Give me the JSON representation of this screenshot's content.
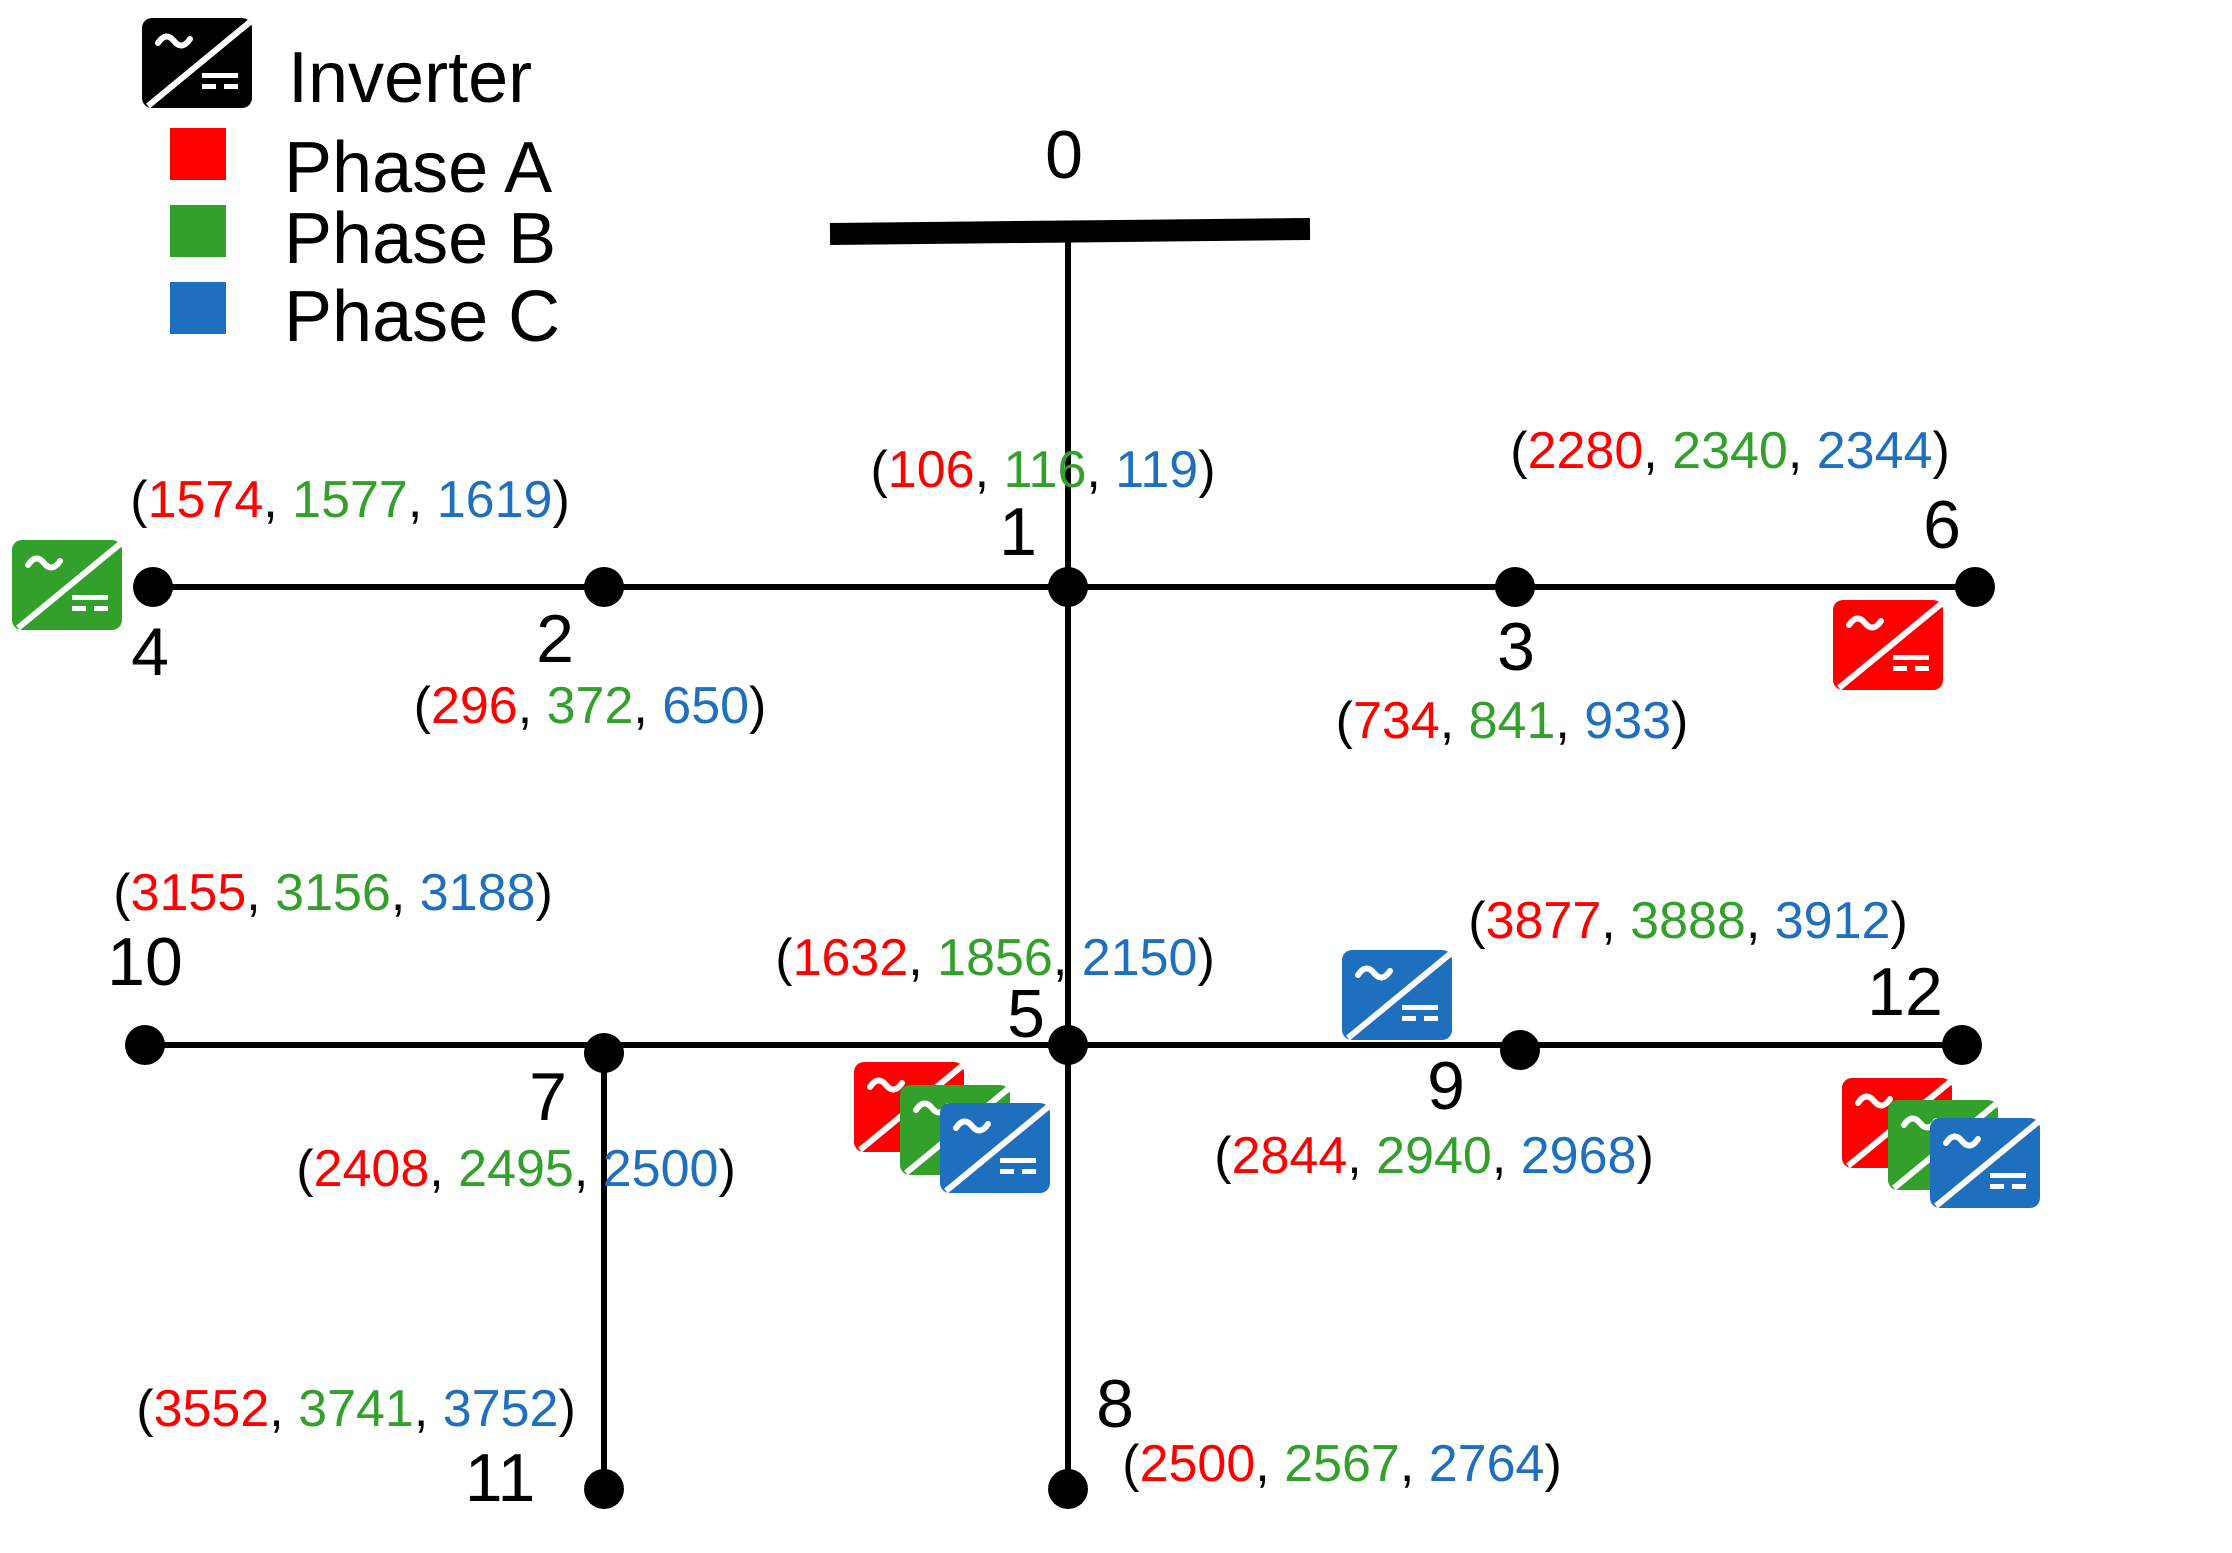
{
  "colors": {
    "phase_a": "#ff0000",
    "phase_b": "#33a02c",
    "phase_c": "#1f6fbf",
    "line": "#000000",
    "inverter_legend": "#000000"
  },
  "legend": {
    "inverter_label": "Inverter",
    "phase_a_label": "Phase A",
    "phase_b_label": "Phase B",
    "phase_c_label": "Phase C",
    "inverter_icon": "inverter-icon"
  },
  "nodes": [
    {
      "id": "0",
      "label": "0"
    },
    {
      "id": "1",
      "label": "1",
      "values": [
        "106",
        "116",
        "119"
      ]
    },
    {
      "id": "2",
      "label": "2",
      "values": [
        "296",
        "372",
        "650"
      ]
    },
    {
      "id": "3",
      "label": "3",
      "values": [
        "734",
        "841",
        "933"
      ]
    },
    {
      "id": "4",
      "label": "4",
      "values": [
        "1574",
        "1577",
        "1619"
      ]
    },
    {
      "id": "5",
      "label": "5",
      "values": [
        "1632",
        "1856",
        "2150"
      ]
    },
    {
      "id": "6",
      "label": "6",
      "values": [
        "2280",
        "2340",
        "2344"
      ]
    },
    {
      "id": "7",
      "label": "7",
      "values": [
        "2408",
        "2495",
        "2500"
      ]
    },
    {
      "id": "8",
      "label": "8",
      "values": [
        "2500",
        "2567",
        "2764"
      ]
    },
    {
      "id": "9",
      "label": "9",
      "values": [
        "2844",
        "2940",
        "2968"
      ]
    },
    {
      "id": "10",
      "label": "10",
      "values": [
        "3155",
        "3156",
        "3188"
      ]
    },
    {
      "id": "11",
      "label": "11",
      "values": [
        "3552",
        "3741",
        "3752"
      ]
    },
    {
      "id": "12",
      "label": "12",
      "values": [
        "3877",
        "3888",
        "3912"
      ]
    }
  ],
  "inverters": [
    {
      "node": "4",
      "phase": "B"
    },
    {
      "node": "6",
      "phase": "A"
    },
    {
      "node": "9",
      "phase": "C"
    },
    {
      "node": "5",
      "phase": "A"
    },
    {
      "node": "5",
      "phase": "B"
    },
    {
      "node": "5",
      "phase": "C"
    },
    {
      "node": "12",
      "phase": "A"
    },
    {
      "node": "12",
      "phase": "B"
    },
    {
      "node": "12",
      "phase": "C"
    }
  ]
}
